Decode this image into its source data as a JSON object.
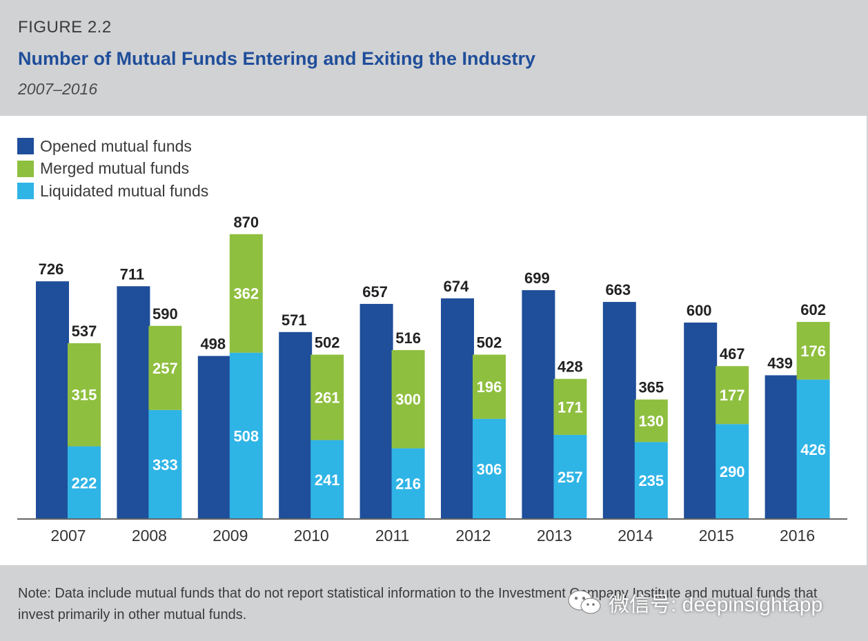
{
  "header": {
    "figure_label": "FIGURE 2.2",
    "title": "Number of Mutual Funds Entering and Exiting the Industry",
    "subtitle": "2007–2016"
  },
  "legend": [
    {
      "label": "Opened mutual funds",
      "color": "#1f4e9a"
    },
    {
      "label": "Merged mutual funds",
      "color": "#8fbf3f"
    },
    {
      "label": "Liquidated mutual funds",
      "color": "#2fb4e6"
    }
  ],
  "chart_data": {
    "type": "bar",
    "stacked": true,
    "categories": [
      "2007",
      "2008",
      "2009",
      "2010",
      "2011",
      "2012",
      "2013",
      "2014",
      "2015",
      "2016"
    ],
    "series": [
      {
        "name": "Opened mutual funds",
        "values": [
          726,
          711,
          498,
          571,
          657,
          674,
          699,
          663,
          600,
          439
        ],
        "color": "#1f4e9a"
      },
      {
        "name": "Merged mutual funds",
        "values": [
          315,
          257,
          362,
          261,
          300,
          196,
          171,
          130,
          177,
          176
        ],
        "color": "#8fbf3f"
      },
      {
        "name": "Liquidated mutual funds",
        "values": [
          222,
          333,
          508,
          241,
          216,
          306,
          257,
          235,
          290,
          426
        ],
        "color": "#2fb4e6"
      }
    ],
    "totals_exiting": [
      537,
      590,
      870,
      502,
      516,
      502,
      428,
      365,
      467,
      602
    ],
    "legend_position": "top-left",
    "grid": false
  },
  "note": "Note: Data include mutual funds that do not report statistical information to the Investment Company Institute and mutual funds that invest primarily in other mutual funds.",
  "watermark": {
    "text": "微信号: deepinsightapp",
    "icon": "wechat-icon"
  }
}
